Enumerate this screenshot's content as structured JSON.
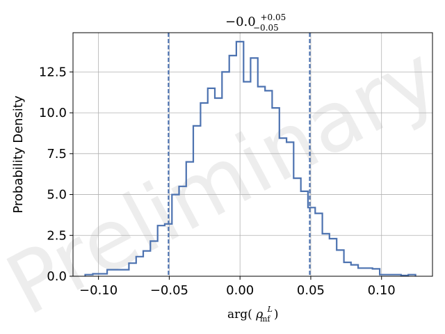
{
  "chart_data": {
    "type": "histogram",
    "title": {
      "base": "−0.0",
      "sup": "+0.05",
      "sub": "−0.05"
    },
    "xlabel": {
      "func": "arg(",
      "symbol": "ρ",
      "sup": "L",
      "sub": "mf",
      "close": ")"
    },
    "ylabel": "Probability Density",
    "xlim": [
      -0.118,
      0.136
    ],
    "ylim": [
      0,
      14.9
    ],
    "xticks": [
      -0.1,
      -0.05,
      0.0,
      0.05,
      0.1
    ],
    "xtick_labels": [
      "−0.10",
      "−0.05",
      "0.00",
      "0.05",
      "0.10"
    ],
    "yticks": [
      0.0,
      2.5,
      5.0,
      7.5,
      10.0,
      12.5
    ],
    "ytick_labels": [
      "0.0",
      "2.5",
      "5.0",
      "7.5",
      "10.0",
      "12.5"
    ],
    "grid": true,
    "series": [
      {
        "color": "#4c72b0",
        "step_x": [
          -0.1094,
          -0.104,
          -0.0989,
          -0.0939,
          -0.0886,
          -0.0835,
          -0.0785,
          -0.0734,
          -0.0684,
          -0.0633,
          -0.0582,
          -0.0532,
          -0.0481,
          -0.0431,
          -0.038,
          -0.033,
          -0.0279,
          -0.0228,
          -0.0178,
          -0.0127,
          -0.0076,
          -0.0026,
          0.0025,
          0.0075,
          0.0126,
          0.0177,
          0.0227,
          0.0278,
          0.0329,
          0.0379,
          0.043,
          0.048,
          0.0531,
          0.0582,
          0.0632,
          0.0683,
          0.0734,
          0.0784,
          0.0835,
          0.0885,
          0.0936,
          0.0987,
          0.1037,
          0.1088,
          0.1138,
          0.1189,
          0.124
        ],
        "step_y": [
          0.1,
          0.15,
          0.15,
          0.4,
          0.4,
          0.4,
          0.8,
          1.2,
          1.55,
          2.15,
          3.1,
          3.2,
          5.0,
          5.5,
          7.0,
          9.2,
          10.6,
          11.5,
          10.9,
          12.5,
          13.5,
          14.35,
          11.9,
          13.35,
          11.6,
          11.35,
          10.3,
          8.45,
          8.2,
          6.0,
          5.2,
          4.2,
          3.85,
          2.6,
          2.3,
          1.6,
          0.85,
          0.7,
          0.5,
          0.5,
          0.45,
          0.1,
          0.1,
          0.1,
          0.05,
          0.1
        ]
      }
    ],
    "vlines": [
      {
        "x": -0.0505,
        "style": "dashed",
        "color": "#4c72b0"
      },
      {
        "x": 0.0493,
        "style": "dashed",
        "color": "#4c72b0"
      }
    ],
    "watermark": "Preliminary"
  }
}
